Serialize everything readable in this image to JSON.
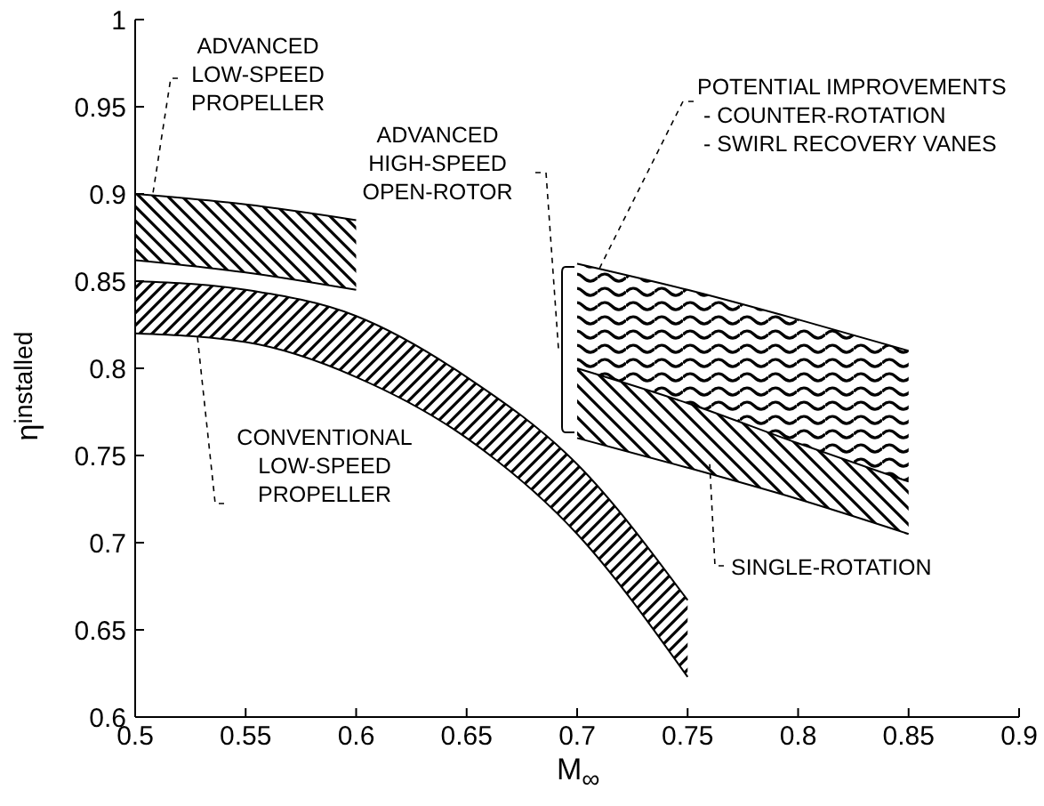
{
  "chart_data": {
    "type": "line",
    "xlabel": "M$_{∞}$",
    "ylabel": "η$_{installed}$",
    "xlim": [
      0.5,
      0.9
    ],
    "xticks": [
      0.5,
      0.55,
      0.6,
      0.65,
      0.7,
      0.75,
      0.8,
      0.85,
      0.9
    ],
    "ylim": [
      0.6,
      1
    ],
    "yticks": [
      0.6,
      0.65,
      0.7,
      0.75,
      0.8,
      0.85,
      0.9,
      0.95,
      1
    ],
    "marker": "none",
    "series": [
      {
        "color": "#000000",
        "x": [
          0.5,
          0.55,
          0.6
        ],
        "values": [
          0.9,
          0.894,
          0.885
        ],
        "upper": [
          0.9,
          0.894,
          0.885
        ],
        "lower": [
          0.862,
          0.855,
          0.845
        ]
      },
      {
        "color": "#000000",
        "x": [
          0.5,
          0.55,
          0.6
        ],
        "values": [
          0.862,
          0.855,
          0.845
        ]
      },
      {
        "color": "#000000",
        "x": [
          0.5,
          0.55,
          0.6,
          0.65,
          0.7,
          0.75
        ],
        "values": [
          0.85,
          0.845,
          0.83,
          0.795,
          0.745,
          0.667
        ],
        "upper": [
          0.85,
          0.845,
          0.83,
          0.795,
          0.745,
          0.667
        ],
        "lower": [
          0.82,
          0.815,
          0.795,
          0.76,
          0.705,
          0.623
        ]
      },
      {
        "color": "#000000",
        "x": [
          0.5,
          0.55,
          0.6,
          0.65,
          0.7,
          0.75
        ],
        "values": [
          0.82,
          0.815,
          0.795,
          0.76,
          0.705,
          0.623
        ]
      },
      {
        "color": "#000000",
        "x": [
          0.7,
          0.75,
          0.8,
          0.85
        ],
        "values": [
          0.86,
          0.845,
          0.828,
          0.81
        ],
        "upper": [
          0.86,
          0.845,
          0.828,
          0.81
        ],
        "lower": [
          0.8,
          0.78,
          0.757,
          0.735
        ]
      },
      {
        "color": "#000000",
        "x": [
          0.7,
          0.75,
          0.8,
          0.85
        ],
        "values": [
          0.8,
          0.78,
          0.757,
          0.735
        ],
        "upper": [
          0.8,
          0.78,
          0.757,
          0.735
        ],
        "lower": [
          0.76,
          0.743,
          0.725,
          0.705
        ]
      },
      {
        "color": "#000000",
        "x": [
          0.7,
          0.75,
          0.8,
          0.85
        ],
        "values": [
          0.76,
          0.743,
          0.725,
          0.705
        ]
      }
    ],
    "annotations": [
      {
        "text": "ADVANCED\nLOW-SPEED\nPROPELLER",
        "x": 0.508,
        "y": 0.9
      },
      {
        "text": "CONVENTIONAL\nLOW-SPEED\nPROPELLER",
        "x": 0.528,
        "y": 0.82
      },
      "ADVANCED\nHIGH-SPEED\nOPEN-ROTOR",
      {
        "text": "POTENTIAL IMPROVEMENTS\n - COUNTER-ROTATION\n - SWIRL RECOVERY VANES",
        "x": 0.71,
        "y": 0.857
      },
      {
        "text": "SINGLE-ROTATION",
        "x": 0.76,
        "y": 0.745
      }
    ]
  }
}
